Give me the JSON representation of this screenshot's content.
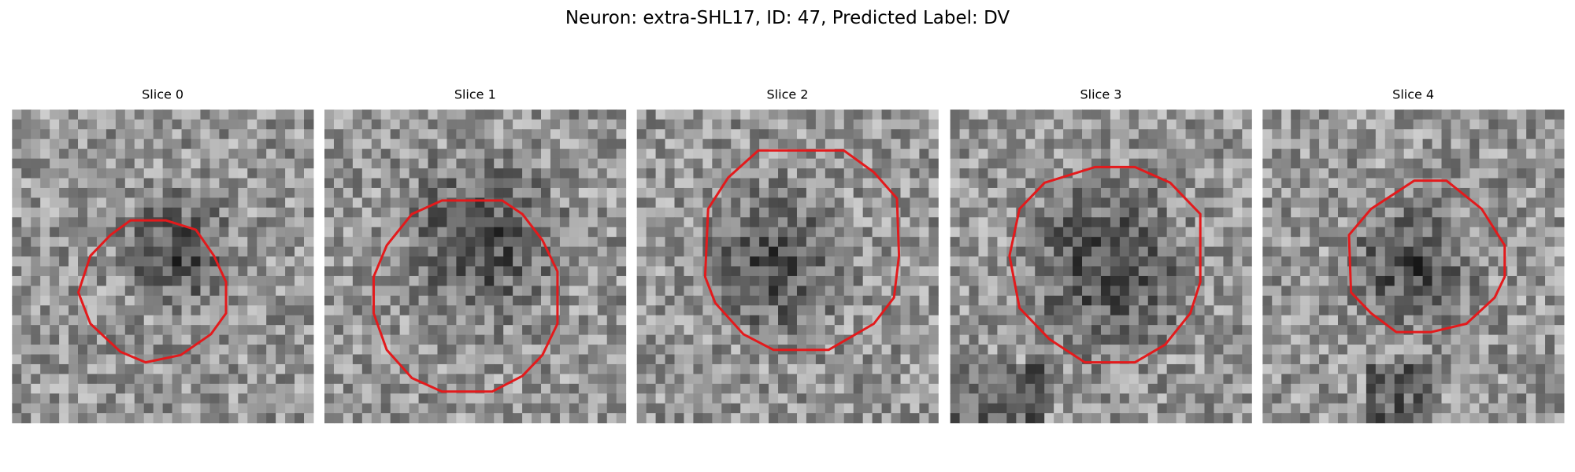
{
  "title": "Neuron: extra-SHL17, ID: 47, Predicted Label: DV",
  "panels": [
    {
      "title": "Slice 0"
    },
    {
      "title": "Slice 1"
    },
    {
      "title": "Slice 2"
    },
    {
      "title": "Slice 3"
    },
    {
      "title": "Slice 4"
    }
  ]
}
